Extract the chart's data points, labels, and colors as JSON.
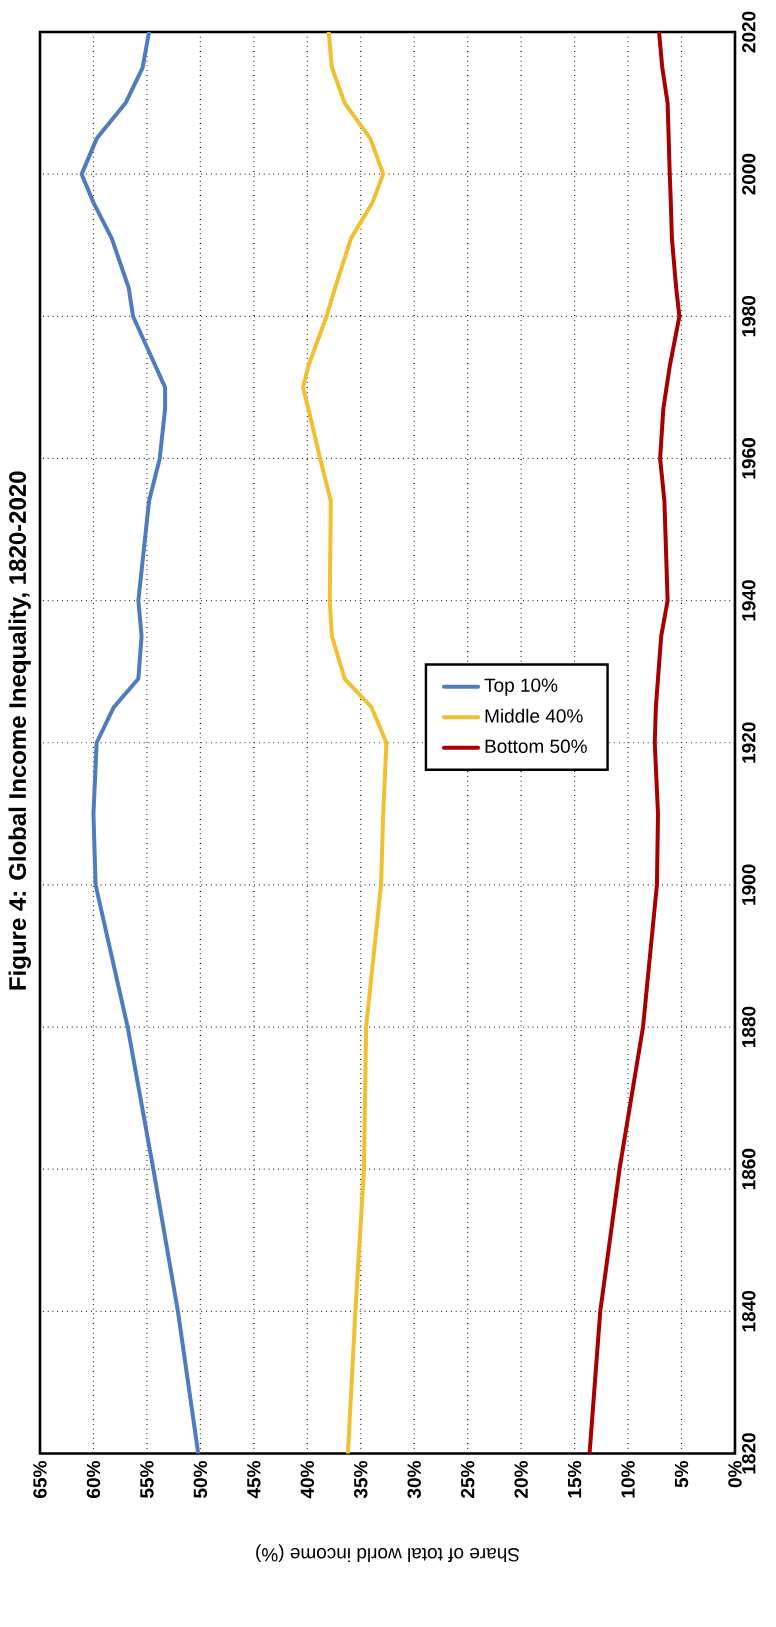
{
  "chart_data": {
    "type": "line",
    "title": "Figure 4: Global Income Inequality, 1820-2020",
    "xlabel": "Share of total world income (%)",
    "series": [
      {
        "name": "Top 10%",
        "color": "#4f7bbf",
        "x": [
          50.2,
          52.1,
          54.4,
          56.8,
          59.8,
          60.0,
          59.7,
          58.1,
          55.8,
          55.5,
          55.8,
          54.8,
          53.8,
          53.3,
          53.3,
          54.2,
          56.3,
          56.7,
          58.3,
          60.0,
          61.1,
          59.7,
          57.0,
          55.4,
          54.8
        ],
        "values": [
          1820,
          1840,
          1860,
          1880,
          1900,
          1910,
          1920,
          1925,
          1929,
          1935,
          1940,
          1954,
          1960,
          1967,
          1970,
          1973,
          1980,
          1984,
          1991,
          1996,
          2000,
          2005,
          2010,
          2015,
          2020
        ]
      },
      {
        "name": "Middle 40%",
        "color": "#f0c032",
        "x": [
          36.2,
          35.5,
          34.7,
          34.5,
          33.1,
          32.9,
          32.6,
          34.0,
          36.5,
          37.7,
          37.9,
          37.8,
          38.8,
          39.9,
          40.4,
          39.9,
          38.2,
          37.4,
          35.9,
          33.9,
          32.9,
          34.1,
          36.5,
          37.7,
          38.0
        ],
        "values": [
          1820,
          1840,
          1860,
          1880,
          1900,
          1910,
          1920,
          1925,
          1929,
          1935,
          1940,
          1954,
          1960,
          1967,
          1970,
          1973,
          1980,
          1984,
          1991,
          1996,
          2000,
          2005,
          2010,
          2015,
          2020
        ]
      },
      {
        "name": "Bottom 50%",
        "color": "#a80000",
        "x": [
          13.6,
          12.6,
          10.8,
          8.6,
          7.3,
          7.2,
          7.5,
          7.4,
          7.2,
          6.9,
          6.3,
          6.6,
          7.0,
          6.7,
          6.4,
          6.1,
          5.2,
          5.5,
          5.9,
          6.0,
          6.1,
          6.2,
          6.3,
          6.8,
          7.1
        ],
        "values": [
          1820,
          1840,
          1860,
          1880,
          1900,
          1910,
          1920,
          1925,
          1929,
          1935,
          1940,
          1954,
          1960,
          1967,
          1970,
          1973,
          1980,
          1984,
          1991,
          1996,
          2000,
          2005,
          2010,
          2015,
          2020
        ]
      }
    ],
    "ylim": [
      1820,
      2020
    ],
    "yticks": [
      1820,
      1840,
      1860,
      1880,
      1900,
      1920,
      1940,
      1960,
      1980,
      2000,
      2020
    ],
    "xlim": [
      65,
      0
    ],
    "xticks": [
      {
        "value": 65,
        "label": "65%"
      },
      {
        "value": 60,
        "label": "60%"
      },
      {
        "value": 55,
        "label": "55%"
      },
      {
        "value": 50,
        "label": "50%"
      },
      {
        "value": 45,
        "label": "45%"
      },
      {
        "value": 40,
        "label": "40%"
      },
      {
        "value": 35,
        "label": "35%"
      },
      {
        "value": 30,
        "label": "30%"
      },
      {
        "value": 25,
        "label": "25%"
      },
      {
        "value": 20,
        "label": "20%"
      },
      {
        "value": 15,
        "label": "15%"
      },
      {
        "value": 10,
        "label": "10%"
      },
      {
        "value": 5,
        "label": "5%"
      },
      {
        "value": 0,
        "label": "0%"
      }
    ],
    "grid": true,
    "legend": "center",
    "line_style": "solid"
  }
}
